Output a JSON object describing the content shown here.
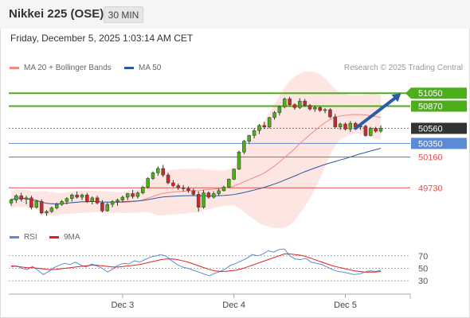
{
  "header": {
    "title": "Nikkei 225 (OSE)",
    "timeframe": "30 MIN",
    "datetime": "Friday, December 5, 2025 1:03:14 AM CET"
  },
  "legend": {
    "items": [
      {
        "label": "MA 20 + Bollinger Bands",
        "color": "#f28b82"
      },
      {
        "label": "MA 50",
        "color": "#2c5aa0"
      }
    ],
    "credit": "Research © 2025 Trading Central"
  },
  "rsi_legend": {
    "items": [
      {
        "label": "RSI",
        "color": "#5b8ad6"
      },
      {
        "label": "9MA",
        "color": "#e02020"
      }
    ]
  },
  "colors": {
    "resistance": "#4caf1a",
    "support": "#5b8ad6",
    "minor": "#e05050",
    "price_tag": "#333333",
    "arrow": "#2b5ca8",
    "band_fill": "#fde0dd",
    "up_candle": "#4caf1a",
    "down_candle": "#cc2a2a"
  },
  "chart_data": [
    {
      "type": "candlestick",
      "title": "",
      "x_ticks": [
        "Dec 3",
        "Dec 4",
        "Dec 5"
      ],
      "levels": [
        {
          "value": 51050,
          "kind": "resistance",
          "label": "51050"
        },
        {
          "value": 50870,
          "kind": "resistance",
          "label": "50870"
        },
        {
          "value": 50560,
          "kind": "last_price",
          "label": "50560"
        },
        {
          "value": 50350,
          "kind": "support",
          "label": "50350"
        },
        {
          "value": 50160,
          "kind": "minor",
          "label": "50160"
        },
        {
          "value": 49730,
          "kind": "minor",
          "label": "49730"
        }
      ],
      "ylim": [
        49190,
        51230
      ],
      "forecast_arrow": {
        "from_index": 68,
        "from_value": 50560,
        "to_index": 77,
        "to_value": 51050
      },
      "candles": [
        [
          49520,
          49580,
          49480,
          49560
        ],
        [
          49560,
          49640,
          49520,
          49620
        ],
        [
          49620,
          49660,
          49540,
          49570
        ],
        [
          49570,
          49620,
          49500,
          49590
        ],
        [
          49590,
          49620,
          49430,
          49460
        ],
        [
          49460,
          49560,
          49440,
          49540
        ],
        [
          49540,
          49570,
          49360,
          49380
        ],
        [
          49380,
          49420,
          49340,
          49400
        ],
        [
          49400,
          49470,
          49380,
          49450
        ],
        [
          49450,
          49520,
          49430,
          49500
        ],
        [
          49500,
          49560,
          49480,
          49540
        ],
        [
          49540,
          49600,
          49500,
          49580
        ],
        [
          49580,
          49650,
          49540,
          49630
        ],
        [
          49630,
          49680,
          49580,
          49600
        ],
        [
          49600,
          49650,
          49560,
          49630
        ],
        [
          49630,
          49660,
          49520,
          49540
        ],
        [
          49540,
          49610,
          49500,
          49590
        ],
        [
          49590,
          49620,
          49500,
          49520
        ],
        [
          49520,
          49560,
          49390,
          49410
        ],
        [
          49410,
          49520,
          49400,
          49500
        ],
        [
          49500,
          49560,
          49460,
          49540
        ],
        [
          49540,
          49580,
          49480,
          49560
        ],
        [
          49560,
          49620,
          49530,
          49600
        ],
        [
          49600,
          49660,
          49560,
          49650
        ],
        [
          49650,
          49700,
          49580,
          49610
        ],
        [
          49610,
          49680,
          49580,
          49660
        ],
        [
          49660,
          49760,
          49640,
          49740
        ],
        [
          49740,
          49880,
          49720,
          49860
        ],
        [
          49860,
          49960,
          49840,
          49940
        ],
        [
          49940,
          50030,
          49900,
          50000
        ],
        [
          50000,
          50050,
          49880,
          49910
        ],
        [
          49910,
          49940,
          49780,
          49800
        ],
        [
          49800,
          49840,
          49740,
          49760
        ],
        [
          49760,
          49790,
          49700,
          49730
        ],
        [
          49730,
          49770,
          49680,
          49720
        ],
        [
          49720,
          49750,
          49660,
          49690
        ],
        [
          49690,
          49720,
          49620,
          49640
        ],
        [
          49640,
          49680,
          49400,
          49460
        ],
        [
          49460,
          49700,
          49440,
          49660
        ],
        [
          49660,
          49680,
          49580,
          49600
        ],
        [
          49600,
          49680,
          49580,
          49650
        ],
        [
          49650,
          49720,
          49620,
          49690
        ],
        [
          49690,
          49760,
          49680,
          49740
        ],
        [
          49740,
          49860,
          49730,
          49850
        ],
        [
          49850,
          50000,
          49840,
          49990
        ],
        [
          49990,
          50250,
          49980,
          50230
        ],
        [
          50230,
          50400,
          50200,
          50380
        ],
        [
          50380,
          50470,
          50340,
          50460
        ],
        [
          50460,
          50560,
          50420,
          50530
        ],
        [
          50530,
          50620,
          50480,
          50600
        ],
        [
          50600,
          50650,
          50550,
          50580
        ],
        [
          50580,
          50720,
          50560,
          50710
        ],
        [
          50710,
          50800,
          50680,
          50780
        ],
        [
          50780,
          50880,
          50740,
          50860
        ],
        [
          50860,
          50990,
          50840,
          50970
        ],
        [
          50970,
          51000,
          50870,
          50890
        ],
        [
          50890,
          50910,
          50820,
          50850
        ],
        [
          50850,
          50980,
          50830,
          50940
        ],
        [
          50940,
          50970,
          50860,
          50880
        ],
        [
          50880,
          50900,
          50810,
          50830
        ],
        [
          50830,
          50880,
          50790,
          50850
        ],
        [
          50850,
          50870,
          50790,
          50810
        ],
        [
          50810,
          50840,
          50770,
          50820
        ],
        [
          50820,
          50840,
          50700,
          50720
        ],
        [
          50720,
          50760,
          50560,
          50580
        ],
        [
          50580,
          50640,
          50540,
          50620
        ],
        [
          50620,
          50640,
          50530,
          50550
        ],
        [
          50550,
          50660,
          50510,
          50630
        ],
        [
          50630,
          50650,
          50560,
          50580
        ],
        [
          50580,
          50620,
          50540,
          50590
        ],
        [
          50590,
          50610,
          50440,
          50460
        ],
        [
          50460,
          50580,
          50450,
          50560
        ],
        [
          50560,
          50580,
          50500,
          50520
        ],
        [
          50520,
          50600,
          50500,
          50560
        ]
      ]
    },
    {
      "type": "line",
      "title": "",
      "ylim": [
        15,
        85
      ],
      "y_ticks": [
        70,
        50,
        30
      ],
      "series": [
        {
          "name": "RSI",
          "color": "#5b8ad6",
          "values": [
            52,
            54,
            50,
            48,
            53,
            47,
            40,
            45,
            51,
            55,
            58,
            56,
            60,
            55,
            52,
            57,
            54,
            50,
            44,
            49,
            55,
            58,
            57,
            62,
            60,
            64,
            68,
            70,
            72,
            69,
            62,
            56,
            52,
            50,
            47,
            44,
            41,
            38,
            42,
            45,
            49,
            55,
            58,
            62,
            66,
            72,
            70,
            73,
            78,
            76,
            80,
            81,
            70,
            65,
            64,
            66,
            60,
            58,
            56,
            52,
            48,
            45,
            44,
            42,
            40,
            41,
            44,
            46,
            45,
            47
          ]
        },
        {
          "name": "9MA",
          "color": "#e02020",
          "values": [
            54,
            53,
            52,
            51,
            51,
            50,
            49,
            48,
            48,
            49,
            50,
            51,
            52,
            53,
            54,
            55,
            55,
            54,
            53,
            52,
            52,
            53,
            54,
            55,
            56,
            58,
            60,
            62,
            64,
            65,
            65,
            64,
            62,
            60,
            57,
            54,
            51,
            48,
            46,
            45,
            45,
            46,
            47,
            49,
            52,
            55,
            58,
            61,
            64,
            67,
            70,
            73,
            73,
            72,
            71,
            69,
            66,
            63,
            60,
            57,
            54,
            52,
            50,
            48,
            46,
            45,
            44,
            44,
            44,
            45
          ]
        }
      ]
    }
  ]
}
